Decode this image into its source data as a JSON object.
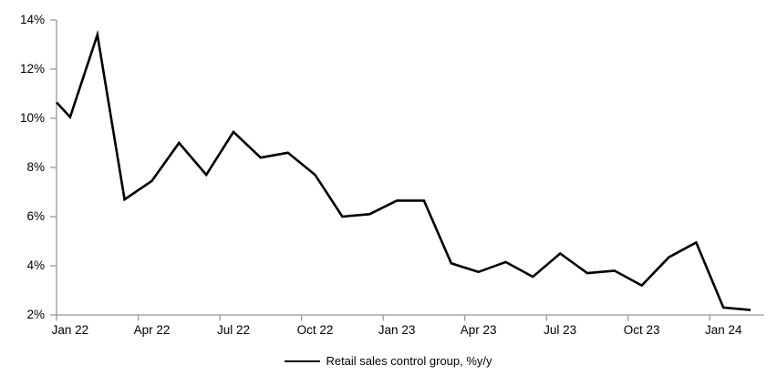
{
  "chart_data": {
    "type": "line",
    "title": "",
    "categories": [
      "Jan 22",
      "Feb 22",
      "Mar 22",
      "Apr 22",
      "May 22",
      "Jun 22",
      "Jul 22",
      "Aug 22",
      "Sep 22",
      "Oct 22",
      "Nov 22",
      "Dec 22",
      "Jan 23",
      "Feb 23",
      "Mar 23",
      "Apr 23",
      "May 23",
      "Jun 23",
      "Jul 23",
      "Aug 23",
      "Sep 23",
      "Oct 23",
      "Nov 23",
      "Dec 23",
      "Jan 24",
      "Feb 24"
    ],
    "series": [
      {
        "name": "Retail sales control group, %y/y",
        "color": "#000000",
        "values": [
          10.05,
          13.4,
          6.7,
          7.45,
          9.0,
          7.7,
          9.45,
          8.4,
          8.6,
          7.7,
          6.0,
          6.1,
          6.65,
          6.65,
          4.1,
          3.75,
          4.15,
          3.55,
          4.5,
          3.7,
          3.8,
          3.2,
          4.35,
          4.95,
          2.3,
          2.2
        ]
      }
    ],
    "clipped_left_entry_value": 10.65,
    "x_tick_labels": [
      "Jan 22",
      "Apr 22",
      "Jul 22",
      "Oct 22",
      "Jan 23",
      "Apr 23",
      "Jul 23",
      "Oct 23",
      "Jan 24"
    ],
    "x_tick_every_n_categories": 3,
    "y_ticks": [
      2,
      4,
      6,
      8,
      10,
      12,
      14
    ],
    "y_tick_suffix": "%",
    "ylim": [
      2,
      14
    ],
    "grid": false,
    "legend_position": "bottom-center",
    "axis_color": "#989898",
    "text_color": "#000000"
  }
}
